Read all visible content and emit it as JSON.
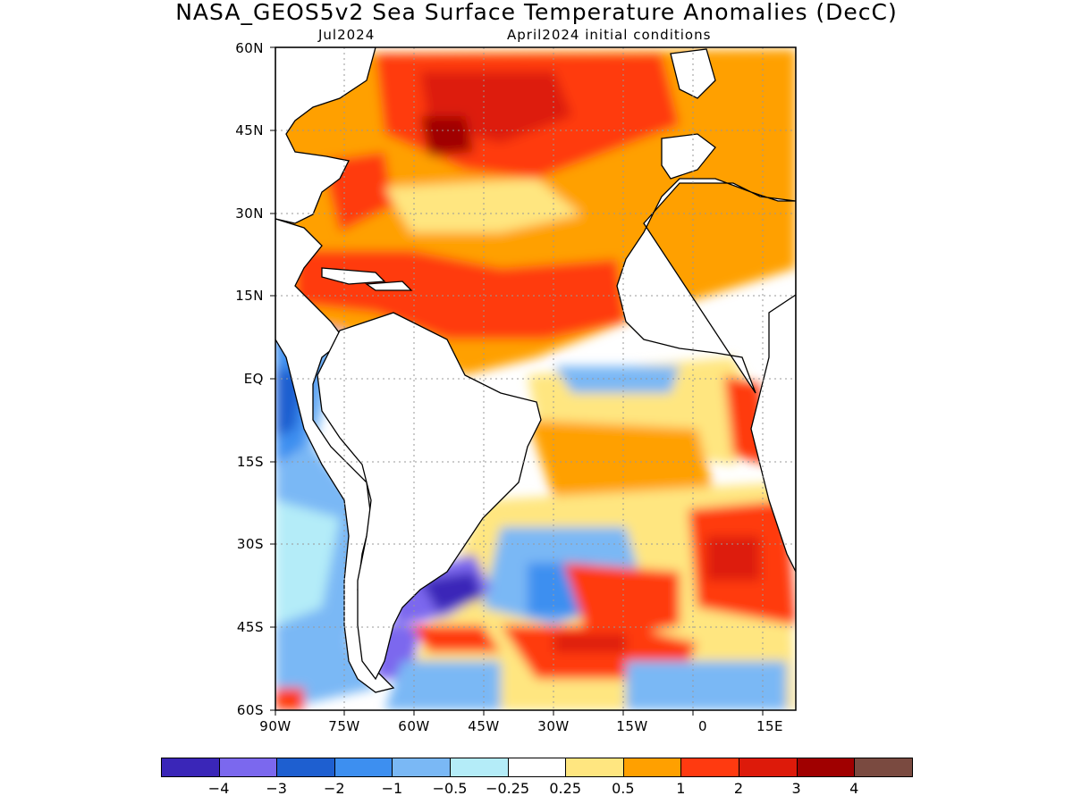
{
  "title": "NASA_GEOS5v2 Sea Surface Temperature Anomalies (DecC)",
  "subtitle_left": "Jul2024",
  "subtitle_right": "April2024 initial conditions",
  "lat_labels": [
    "60N",
    "45N",
    "30N",
    "15N",
    "EQ",
    "15S",
    "30S",
    "45S",
    "60S"
  ],
  "lon_labels": [
    "90W",
    "75W",
    "60W",
    "45W",
    "30W",
    "15W",
    "0",
    "15E"
  ],
  "colorbar": {
    "colors": [
      "#3a26b8",
      "#7b68ee",
      "#1e5fd0",
      "#3d8ff0",
      "#7ab8f5",
      "#b4ecf8",
      "#ffffff",
      "#ffe680",
      "#ffa000",
      "#ff3a10",
      "#dd1a0a",
      "#a00000",
      "#7a4a40"
    ],
    "labels": [
      "−4",
      "−3",
      "−2",
      "−1",
      "−0.5",
      "−0.25",
      "0.25",
      "0.5",
      "1",
      "2",
      "3",
      "4"
    ]
  },
  "map_data": {
    "region": "Atlantic Ocean, 90W–20E, 60S–60N",
    "variable": "Sea surface temperature anomaly",
    "units": "DecC",
    "features": [
      {
        "area": "North Atlantic 10N–60N",
        "anomaly": "+0.5 to +2, orange/red"
      },
      {
        "area": "Gulf of Maine / Newfoundland",
        "anomaly": "+3, dark red"
      },
      {
        "area": "Eastern Pacific off South America",
        "anomaly": "-1 to -2, blue"
      },
      {
        "area": "Equatorial Atlantic cold tongue",
        "anomaly": "-1, blue"
      },
      {
        "area": "Patagonian shelf",
        "anomaly": "-3 to -4, purple"
      },
      {
        "area": "South Atlantic 30S–50S",
        "anomaly": "mixed +2 to -2"
      },
      {
        "area": "Angola/Benguela coast",
        "anomaly": "+2, red"
      }
    ]
  }
}
